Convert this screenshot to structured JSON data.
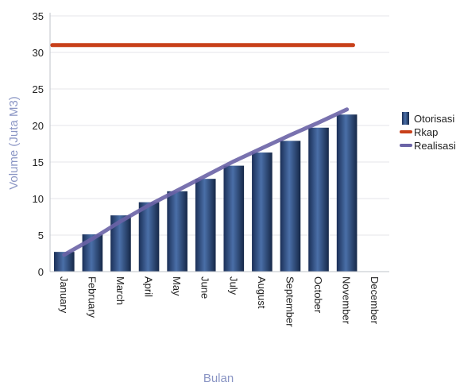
{
  "chart_data": {
    "type": "bar",
    "title": "",
    "xlabel": "Bulan",
    "ylabel": "Volume (Juta M3)",
    "ylim": [
      0,
      35
    ],
    "yticks": [
      0,
      5,
      10,
      15,
      20,
      25,
      30,
      35
    ],
    "grid": true,
    "legend_position": "right",
    "categories": [
      "January",
      "February",
      "March",
      "April",
      "May",
      "June",
      "July",
      "August",
      "September",
      "October",
      "November",
      "December"
    ],
    "series": [
      {
        "name": "Otorisasi",
        "kind": "bar",
        "color": "#1f3d6e",
        "values": [
          2.7,
          5.1,
          7.7,
          9.5,
          11.0,
          12.7,
          14.5,
          16.3,
          17.9,
          19.7,
          21.5,
          null
        ]
      },
      {
        "name": "Rkap",
        "kind": "line",
        "color": "#c8401a",
        "values": [
          31,
          31,
          31,
          31,
          31,
          31,
          31,
          31,
          31,
          31,
          31,
          null
        ]
      },
      {
        "name": "Realisasi",
        "kind": "line",
        "color": "#6a63a6",
        "values": [
          2.3,
          4.5,
          6.9,
          9.1,
          11.1,
          13.1,
          15.1,
          16.9,
          18.7,
          20.4,
          22.2,
          null
        ]
      }
    ]
  }
}
